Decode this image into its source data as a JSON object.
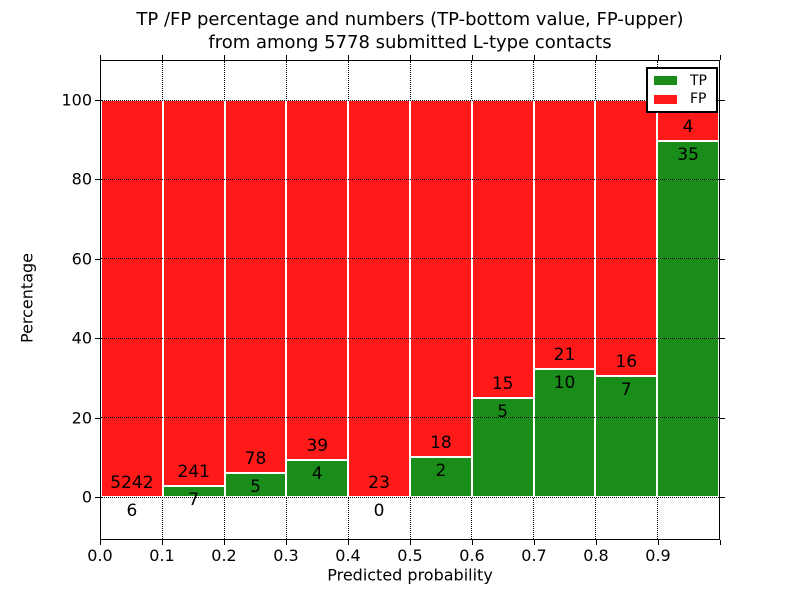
{
  "title": {
    "line1": "TP /FP percentage and numbers (TP-bottom value, FP-upper)",
    "line2": "from among 5778 submitted L-type contacts"
  },
  "axes": {
    "xlabel": "Predicted probability",
    "ylabel": "Percentage",
    "x_tick_labels": [
      "0.0",
      "0.1",
      "0.2",
      "0.3",
      "0.4",
      "0.5",
      "0.6",
      "0.7",
      "0.8",
      "0.9"
    ],
    "y_tick_labels": [
      "0",
      "20",
      "40",
      "60",
      "80",
      "100"
    ],
    "y_tick_values": [
      0,
      20,
      40,
      60,
      80,
      100
    ]
  },
  "legend": {
    "entries": [
      {
        "label": "TP",
        "color": "#198c19"
      },
      {
        "label": "FP",
        "color": "#ff1919"
      }
    ],
    "position": "upper right"
  },
  "colors": {
    "tp_green": "#198c19",
    "fp_red": "#ff1919",
    "grid": "#000000",
    "bar_edge": "#ffffff"
  },
  "chart_data": {
    "type": "bar",
    "stacked": true,
    "normalized_to_percent": true,
    "title": "TP /FP percentage and numbers (TP-bottom value, FP-upper) from among 5778 submitted L-type contacts",
    "xlabel": "Predicted probability",
    "ylabel": "Percentage",
    "bin_edges": [
      0.0,
      0.1,
      0.2,
      0.3,
      0.4,
      0.5,
      0.6,
      0.7,
      0.8,
      0.9,
      1.0
    ],
    "series": [
      {
        "name": "TP",
        "color": "#198c19",
        "counts": [
          6,
          7,
          5,
          4,
          0,
          2,
          5,
          10,
          7,
          35
        ]
      },
      {
        "name": "FP",
        "color": "#ff1919",
        "counts": [
          5242,
          241,
          78,
          39,
          23,
          18,
          15,
          21,
          16,
          4
        ]
      }
    ],
    "tp_percent": [
      0.11,
      2.82,
      6.02,
      9.3,
      0.0,
      10.0,
      25.0,
      32.26,
      30.43,
      89.74
    ],
    "fp_percent": [
      99.89,
      97.18,
      93.98,
      90.7,
      100.0,
      90.0,
      75.0,
      67.74,
      69.57,
      10.26
    ],
    "total_submitted": 5778,
    "ylim_displayed": [
      0,
      100
    ],
    "grid": "dotted",
    "legend_position": "upper right"
  }
}
